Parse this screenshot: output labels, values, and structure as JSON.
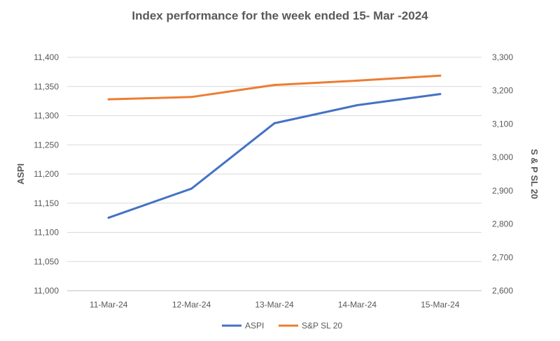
{
  "chart_data": {
    "type": "line",
    "title": "Index performance for the week ended 15- Mar -2024",
    "categories": [
      "11-Mar-24",
      "12-Mar-24",
      "13-Mar-24",
      "14-Mar-24",
      "15-Mar-24"
    ],
    "series": [
      {
        "name": "ASPI",
        "axis": "left",
        "color": "#4472C4",
        "values": [
          11125,
          11175,
          11287,
          11318,
          11337
        ]
      },
      {
        "name": "S&P SL 20",
        "axis": "right",
        "color": "#ED7D31",
        "values": [
          3174,
          3181,
          3217,
          3230,
          3245
        ]
      }
    ],
    "y_left": {
      "label": "ASPI",
      "lim": [
        11000,
        11400
      ],
      "ticks": [
        "11,000",
        "11,050",
        "11,100",
        "11,150",
        "11,200",
        "11,250",
        "11,300",
        "11,350",
        "11,400"
      ]
    },
    "y_right": {
      "label": "S & P SL 20",
      "lim": [
        2600,
        3300
      ],
      "ticks": [
        "2,600",
        "2,700",
        "2,800",
        "2,900",
        "3,000",
        "3,100",
        "3,200",
        "3,300"
      ]
    },
    "grid": true,
    "legend_position": "bottom"
  }
}
